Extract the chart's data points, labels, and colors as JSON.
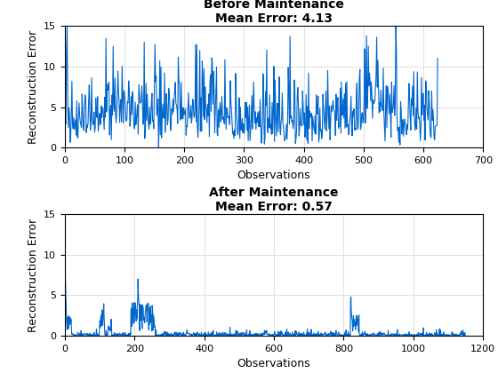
{
  "title1": "Before Maintenance\nMean Error: 4.13",
  "title2": "After Maintenance\nMean Error: 0.57",
  "xlabel": "Observations",
  "ylabel": "Reconstruction Error",
  "ylim": [
    0,
    15
  ],
  "yticks": [
    0,
    5,
    10,
    15
  ],
  "xlim1": [
    0,
    700
  ],
  "xticks1": [
    0,
    100,
    200,
    300,
    400,
    500,
    600,
    700
  ],
  "xlim2": [
    0,
    1200
  ],
  "xticks2": [
    0,
    200,
    400,
    600,
    800,
    1000,
    1200
  ],
  "line_color": "#0066CC",
  "line_width": 0.8,
  "seed1": 42,
  "n1": 625,
  "mean_error1": 4.13,
  "seed2": 123,
  "n2": 1150,
  "mean_error2": 0.57,
  "title_fontsize": 10,
  "label_fontsize": 9,
  "tick_fontsize": 8,
  "title_fontweight": "bold"
}
